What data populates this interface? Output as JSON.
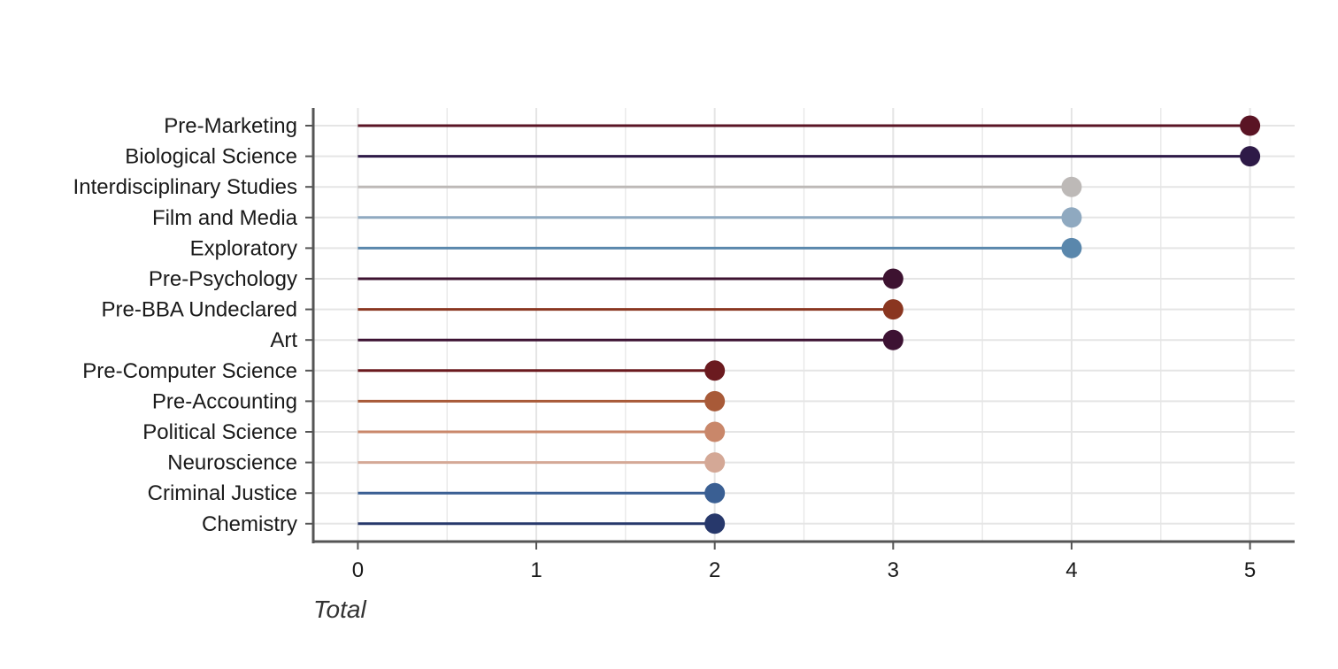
{
  "chart_data": {
    "type": "lollipop",
    "title": "",
    "xlabel": "Total",
    "ylabel": "",
    "xlim": [
      -0.25,
      5.25
    ],
    "x_ticks": [
      0,
      1,
      2,
      3,
      4,
      5
    ],
    "grid": true,
    "categories": [
      "Pre-Marketing",
      "Biological Science",
      "Interdisciplinary Studies",
      "Film and Media",
      "Exploratory",
      "Pre-Psychology",
      "Pre-BBA Undeclared",
      "Art",
      "Pre-Computer Science",
      "Pre-Accounting",
      "Political Science",
      "Neuroscience",
      "Criminal Justice",
      "Chemistry"
    ],
    "values": [
      5,
      5,
      4,
      4,
      4,
      3,
      3,
      3,
      2,
      2,
      2,
      2,
      2,
      2
    ],
    "colors": [
      "#5a1424",
      "#2e1a47",
      "#bdb9b7",
      "#8fa9c0",
      "#5a87ac",
      "#3d1230",
      "#8a3620",
      "#3d1233",
      "#6b1a1f",
      "#a85a38",
      "#c9876a",
      "#d4a896",
      "#3a5f93",
      "#27386b"
    ],
    "gridline_color": "#e5e5e5",
    "axis_color": "#555555"
  }
}
